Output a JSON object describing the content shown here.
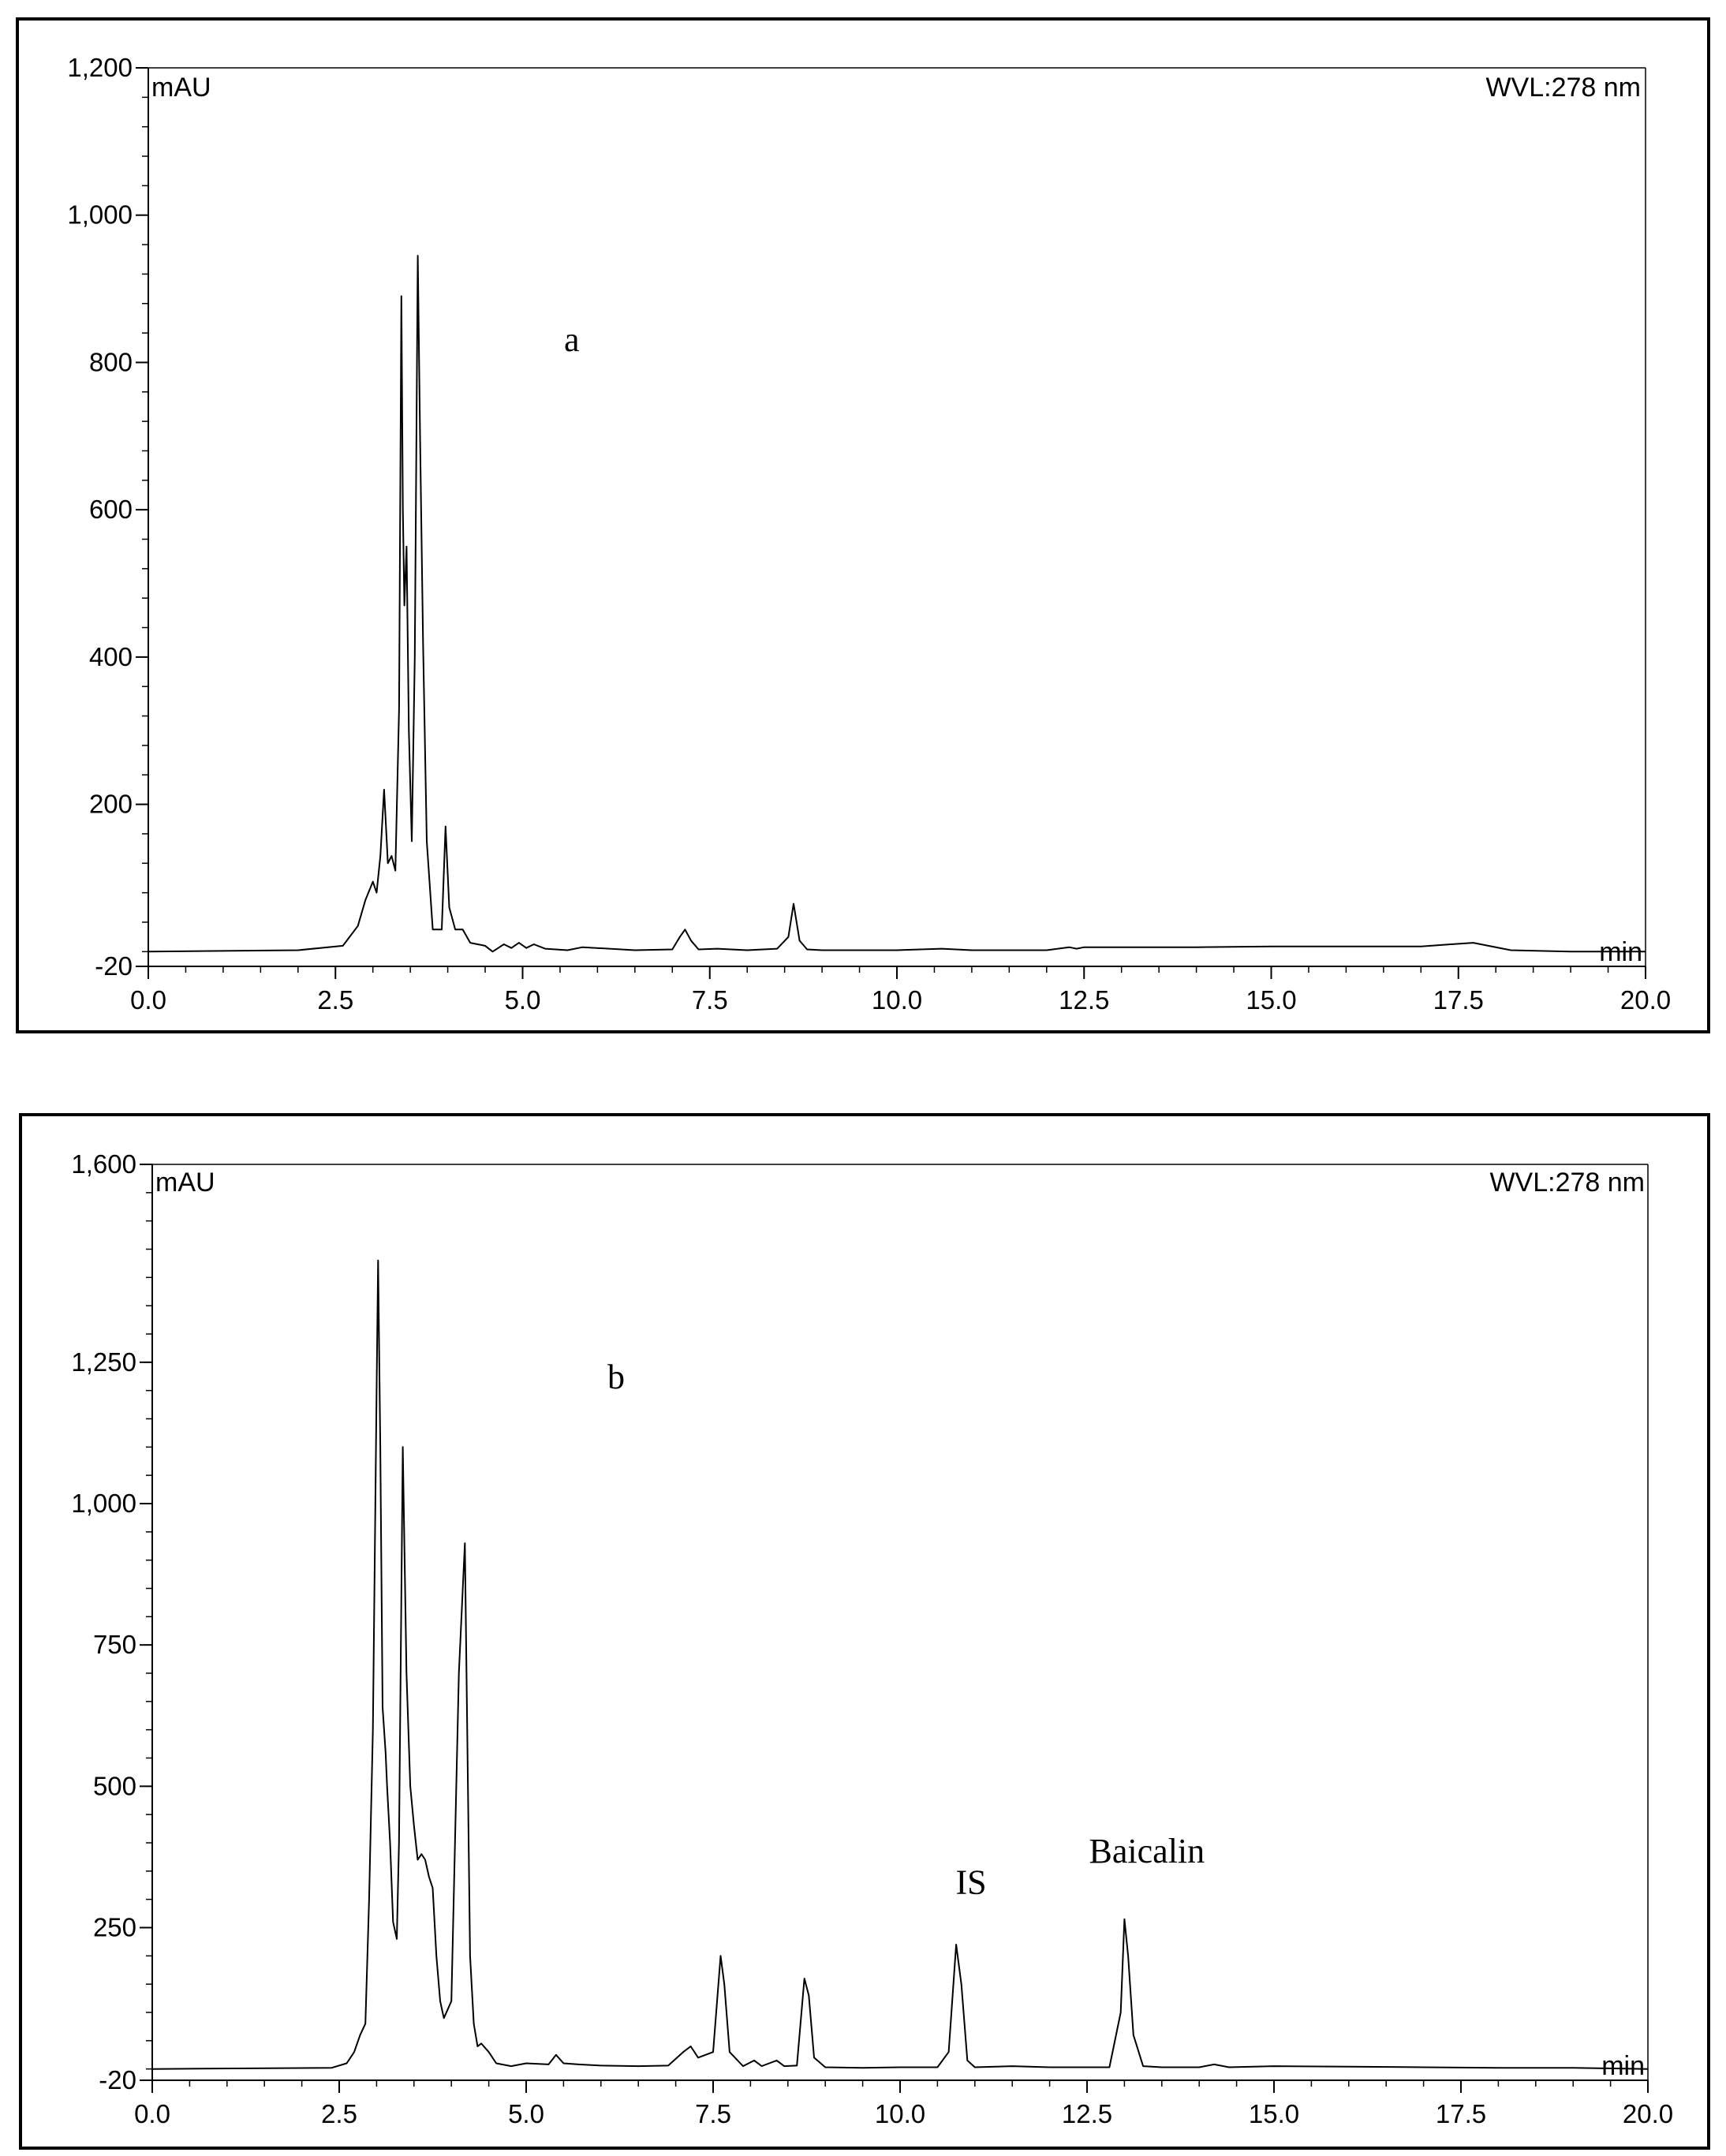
{
  "chart_data": [
    {
      "type": "line",
      "panel_label": "a",
      "units_label": "mAU",
      "wavelength_label": "WVL:278 nm",
      "x_unit_label": "min",
      "xlim": [
        0,
        20
      ],
      "ylim": [
        -20,
        1200
      ],
      "x_ticks": [
        "0.0",
        "2.5",
        "5.0",
        "7.5",
        "10.0",
        "12.5",
        "15.0",
        "17.5",
        "20.0"
      ],
      "y_ticks": [
        "-20",
        "200",
        "400",
        "600",
        "800",
        "1,000",
        "1,200"
      ],
      "annotations": [],
      "series": [
        {
          "x": [
            0.0,
            2.0,
            2.6,
            2.8,
            2.9,
            3.0,
            3.05,
            3.1,
            3.15,
            3.2,
            3.25,
            3.3,
            3.35,
            3.38,
            3.4,
            3.42,
            3.45,
            3.48,
            3.52,
            3.56,
            3.6,
            3.63,
            3.67,
            3.72,
            3.8,
            3.92,
            3.97,
            4.02,
            4.1,
            4.15,
            4.2,
            4.3,
            4.5,
            4.6,
            4.75,
            4.85,
            4.95,
            5.05,
            5.15,
            5.3,
            5.6,
            5.8,
            6.5,
            7.0,
            7.1,
            7.17,
            7.25,
            7.35,
            7.6,
            8.0,
            8.4,
            8.55,
            8.62,
            8.7,
            8.8,
            9.0,
            10.0,
            10.6,
            11.0,
            12.0,
            12.3,
            12.4,
            12.5,
            13.0,
            14.0,
            15.0,
            16.0,
            17.0,
            17.4,
            17.7,
            17.9,
            18.2,
            19.0,
            20.0
          ],
          "values": [
            0,
            2,
            8,
            35,
            70,
            95,
            80,
            130,
            220,
            120,
            130,
            110,
            330,
            890,
            600,
            470,
            550,
            300,
            150,
            400,
            945,
            700,
            420,
            150,
            30,
            30,
            170,
            60,
            30,
            30,
            30,
            12,
            8,
            0,
            10,
            5,
            12,
            5,
            10,
            4,
            2,
            6,
            2,
            3,
            20,
            30,
            15,
            3,
            4,
            2,
            4,
            20,
            65,
            15,
            3,
            2,
            2,
            4,
            2,
            2,
            6,
            4,
            6,
            6,
            6,
            7,
            7,
            7,
            10,
            12,
            8,
            2,
            0,
            0
          ]
        }
      ]
    },
    {
      "type": "line",
      "panel_label": "b",
      "units_label": "mAU",
      "wavelength_label": "WVL:278 nm",
      "x_unit_label": "min",
      "xlim": [
        0,
        20
      ],
      "ylim": [
        -20,
        1600
      ],
      "x_ticks": [
        "0.0",
        "2.5",
        "5.0",
        "7.5",
        "10.0",
        "12.5",
        "15.0",
        "17.5",
        "20.0"
      ],
      "y_ticks": [
        "-20",
        "250",
        "500",
        "750",
        "1,000",
        "1,250",
        "1,600"
      ],
      "annotations": [
        {
          "text": "IS",
          "x": 10.95,
          "y": 310
        },
        {
          "text": "Baicalin",
          "x": 13.3,
          "y": 365
        }
      ],
      "series": [
        {
          "x": [
            0.0,
            2.4,
            2.6,
            2.7,
            2.78,
            2.85,
            2.9,
            2.95,
            3.0,
            3.02,
            3.05,
            3.08,
            3.12,
            3.14,
            3.18,
            3.22,
            3.27,
            3.3,
            3.35,
            3.4,
            3.45,
            3.5,
            3.55,
            3.6,
            3.65,
            3.7,
            3.75,
            3.8,
            3.85,
            3.9,
            4.0,
            4.1,
            4.18,
            4.25,
            4.3,
            4.35,
            4.4,
            4.5,
            4.6,
            4.8,
            5.0,
            5.3,
            5.4,
            5.5,
            5.7,
            6.0,
            6.5,
            6.9,
            7.1,
            7.2,
            7.3,
            7.5,
            7.6,
            7.65,
            7.72,
            7.9,
            8.05,
            8.15,
            8.25,
            8.35,
            8.45,
            8.62,
            8.72,
            8.78,
            8.85,
            9.0,
            9.5,
            10.0,
            10.5,
            10.65,
            10.75,
            10.82,
            10.9,
            11.0,
            11.5,
            12.0,
            12.8,
            12.95,
            13.0,
            13.05,
            13.12,
            13.25,
            13.5,
            14.0,
            14.2,
            14.4,
            15.0,
            16.0,
            17.0,
            18.0,
            19.0,
            20.0
          ],
          "values": [
            0,
            2,
            10,
            30,
            60,
            80,
            300,
            600,
            1200,
            1430,
            1100,
            640,
            560,
            500,
            400,
            260,
            230,
            400,
            1100,
            700,
            500,
            430,
            370,
            380,
            370,
            340,
            320,
            200,
            120,
            90,
            120,
            700,
            930,
            200,
            80,
            40,
            45,
            30,
            10,
            5,
            10,
            8,
            25,
            10,
            8,
            6,
            5,
            6,
            30,
            40,
            20,
            30,
            200,
            150,
            30,
            5,
            15,
            5,
            10,
            15,
            5,
            6,
            160,
            130,
            20,
            3,
            2,
            3,
            3,
            30,
            220,
            150,
            15,
            3,
            5,
            3,
            3,
            100,
            265,
            200,
            60,
            5,
            3,
            3,
            8,
            3,
            5,
            4,
            3,
            2,
            2,
            0
          ]
        }
      ]
    }
  ]
}
